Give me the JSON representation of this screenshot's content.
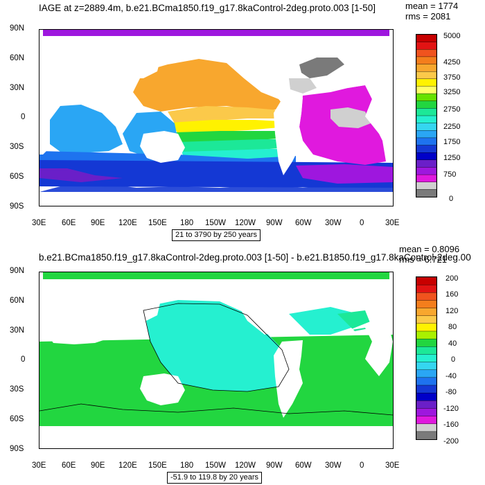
{
  "panel_top": {
    "title": "IAGE at z=2889.4m, b.e21.BCma1850.f19_g17.8kaControl-2deg.proto.003 [1-50]",
    "mean_text": "mean = 1774",
    "rms_text": "rms = 2081",
    "range_text": "21 to 3790 by 250 years",
    "colorbar": {
      "labels": [
        "5000",
        "4250",
        "3750",
        "3250",
        "2750",
        "2250",
        "1750",
        "1250",
        "750",
        "0"
      ],
      "colors": [
        "#c80000",
        "#e21313",
        "#f0531e",
        "#f47e1c",
        "#f8a72e",
        "#fbc94a",
        "#fff200",
        "#ffff66",
        "#66e200",
        "#22d640",
        "#1ce898",
        "#25f0d0",
        "#35d6f0",
        "#2aa6f4",
        "#1e73ef",
        "#1438d4",
        "#0000c8",
        "#6a1fc8",
        "#9e17de",
        "#e019de",
        "#d0d0d0",
        "#7a7a7a"
      ]
    }
  },
  "panel_bottom": {
    "title": "b.e21.BCma1850.f19_g17.8kaControl-2deg.proto.003 [1-50] - b.e21.B1850.f19_g17.8kaControl-2deg.00",
    "mean_text": "mean = 0.8096",
    "rms_text": "rms = 6.721",
    "range_text": "-51.9 to 119.8 by 20 years",
    "colorbar": {
      "labels": [
        "200",
        "160",
        "120",
        "80",
        "40",
        "0",
        "-40",
        "-80",
        "-120",
        "-160",
        "-200"
      ],
      "colors": [
        "#c80000",
        "#e21313",
        "#f0531e",
        "#f47e1c",
        "#f8a72e",
        "#fbc94a",
        "#fff200",
        "#aaf000",
        "#22d640",
        "#1ce898",
        "#25f0d0",
        "#35d6f0",
        "#2aa6f4",
        "#1e73ef",
        "#1438d4",
        "#0000c8",
        "#6a1fc8",
        "#9e17de",
        "#e019de",
        "#d0d0d0",
        "#7a7a7a"
      ]
    }
  },
  "axes": {
    "lat_ticks": [
      "90N",
      "60N",
      "30N",
      "0",
      "30S",
      "60S",
      "90S"
    ],
    "lon_ticks": [
      "30E",
      "60E",
      "90E",
      "120E",
      "150E",
      "180",
      "150W",
      "120W",
      "90W",
      "60W",
      "30W",
      "0",
      "30E"
    ]
  },
  "colors": {
    "land": "#ffffff",
    "top_north_pacific": "#f8a72e",
    "top_tropical_pacific": "#fff200",
    "top_southern_ocean": "#1438d4",
    "top_atlantic": "#e019de",
    "top_arctic": "#9e17de",
    "bottom_dominant": "#22d640",
    "bottom_pacific": "#25f0d0"
  }
}
